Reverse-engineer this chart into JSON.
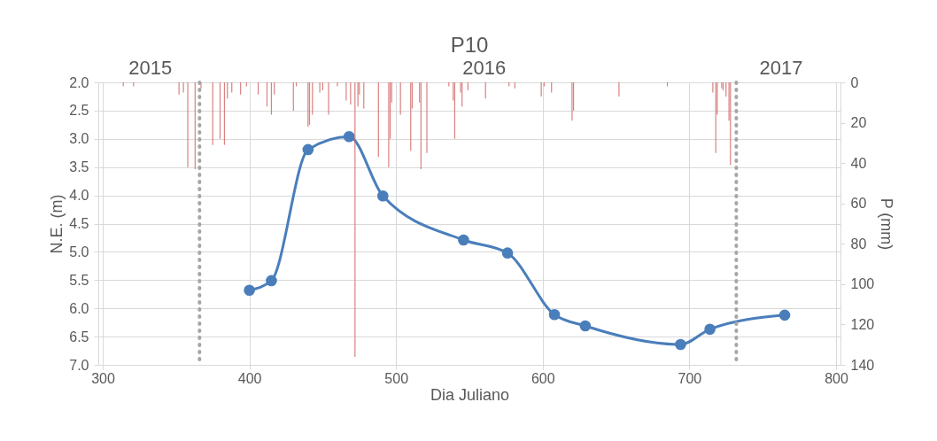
{
  "chart_data": {
    "type": "line",
    "title": "P10",
    "xlabel": "Dia Juliano",
    "ylabel": "N.E. (m)",
    "y2label": "P (mm)",
    "xlim": [
      300,
      800
    ],
    "xticks": [
      300,
      400,
      500,
      600,
      700,
      800
    ],
    "ylim": [
      7.0,
      2.0
    ],
    "yticks": [
      {
        "value": 2,
        "label": "2.0"
      },
      2.5,
      {
        "value": 3,
        "label": "3.0"
      },
      3.5,
      {
        "value": 4,
        "label": "4.0"
      },
      4.5,
      {
        "value": 5,
        "label": "5.0"
      },
      5.5,
      {
        "value": 6,
        "label": "6.0"
      },
      6.5,
      {
        "value": 7,
        "label": "7.0"
      }
    ],
    "y2lim": [
      140,
      0
    ],
    "y2ticks": [
      0,
      20,
      40,
      60,
      80,
      100,
      120,
      140
    ],
    "grid": true,
    "marker": "circle",
    "line_style": "solid",
    "series": [
      {
        "axis": "y",
        "color": "#4a7ebb",
        "x": [
          400,
          415,
          440,
          468,
          491,
          546,
          576,
          608,
          629,
          694,
          714,
          765
        ],
        "values": [
          5.68,
          5.51,
          3.19,
          2.96,
          4.01,
          4.79,
          5.02,
          6.11,
          6.31,
          6.64,
          6.37,
          6.12
        ]
      },
      {
        "type": "bar",
        "axis": "y2",
        "color": "#d46b6b",
        "x": [
          314,
          321,
          352,
          355,
          358,
          363,
          367,
          375,
          380,
          383,
          385,
          388,
          394,
          398,
          406,
          412,
          415,
          417,
          430,
          432,
          440,
          441,
          443,
          448,
          450,
          454,
          460,
          466,
          469,
          472,
          474,
          475,
          478,
          488,
          495,
          496,
          497,
          503,
          510,
          511,
          516,
          517,
          521,
          536,
          539,
          540,
          544,
          545,
          549,
          561,
          577,
          581,
          599,
          601,
          606,
          620,
          621,
          652,
          685,
          716,
          718,
          719,
          722,
          723,
          725,
          727,
          728
        ],
        "values": [
          2,
          2,
          6,
          5,
          42,
          43,
          3,
          31,
          28,
          31,
          8,
          5,
          6,
          2,
          6,
          12,
          16,
          6,
          14,
          2,
          22,
          21,
          16,
          5,
          4,
          16,
          2,
          9,
          11,
          136,
          12,
          6,
          13,
          37,
          42,
          28,
          10,
          16,
          34,
          13,
          10,
          43,
          35,
          2,
          9,
          28,
          5,
          12,
          4,
          8,
          2,
          3,
          7,
          2,
          5,
          19,
          14,
          7,
          2,
          5,
          35,
          16,
          3,
          4,
          7,
          19,
          41
        ]
      }
    ],
    "ref_lines": [
      {
        "axis": "x",
        "value": 366,
        "color": "#a6a6a6",
        "line_style": "dotted"
      },
      {
        "axis": "x",
        "value": 732,
        "color": "#a6a6a6",
        "line_style": "dotted"
      }
    ],
    "annotations": [
      "2015",
      "2016",
      "2017"
    ]
  }
}
